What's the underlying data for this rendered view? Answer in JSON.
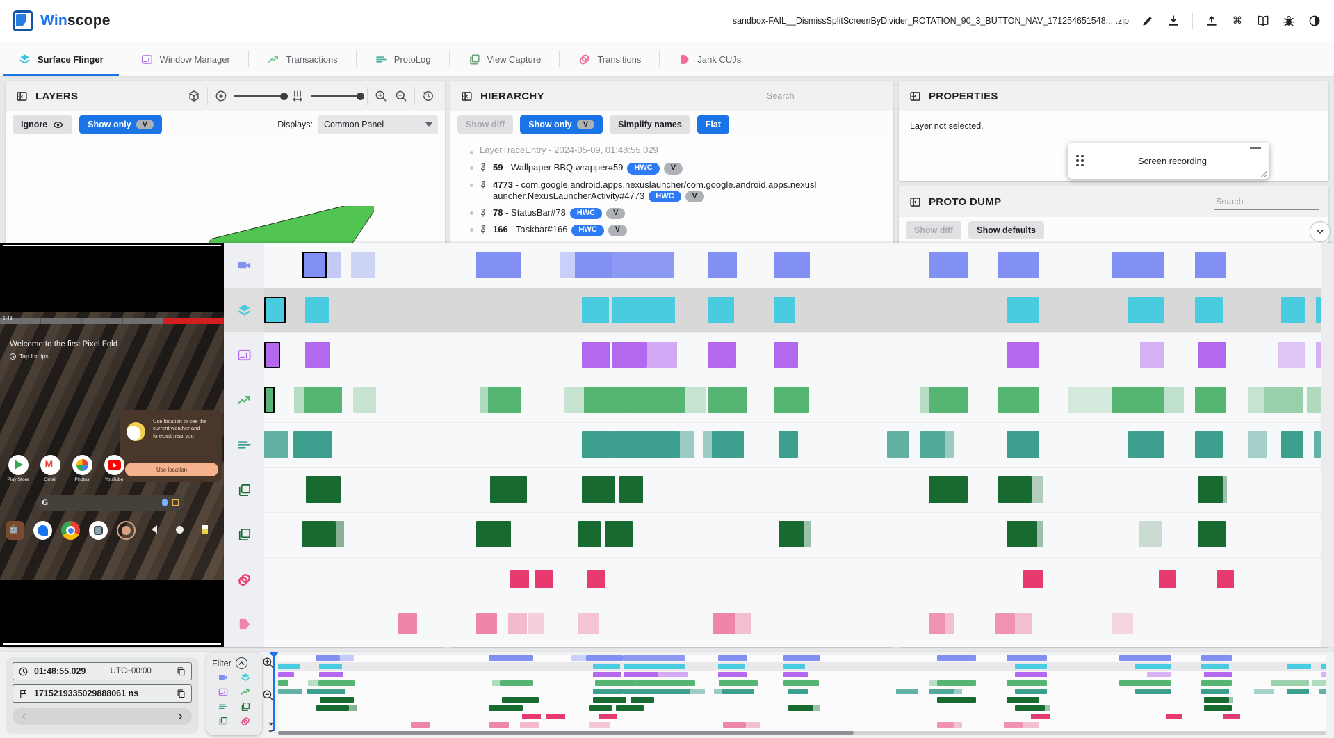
{
  "colors": {
    "accent": "#1b73e8",
    "chip_hwc": "#2f7bf6",
    "chip_v": "#aeb1b6",
    "selected_row_bg": "#d8d8d8"
  },
  "topbar": {
    "brand_bold": "Win",
    "brand_rest": "scope",
    "filename": "sandbox-FAIL__DismissSplitScreenByDivider_ROTATION_90_3_BUTTON_NAV_171254651548... .zip",
    "icons": [
      "edit-icon",
      "download-icon",
      "divider",
      "upload-icon",
      "shortcuts-icon",
      "docs-icon",
      "bug-icon",
      "theme-toggle-icon"
    ]
  },
  "tabs": [
    {
      "label": "Surface Flinger",
      "icon": "layers",
      "color": "#35c4dd",
      "active": true
    },
    {
      "label": "Window Manager",
      "icon": "window",
      "color": "#b06ae8",
      "active": false
    },
    {
      "label": "Transactions",
      "icon": "trending",
      "color": "#7cc795",
      "active": false
    },
    {
      "label": "ProtoLog",
      "icon": "lines",
      "color": "#56b3a2",
      "active": false
    },
    {
      "label": "View Capture",
      "icon": "squares",
      "color": "#5d9e6e",
      "active": false
    },
    {
      "label": "Transitions",
      "icon": "rings",
      "color": "#ef6e99",
      "active": false
    },
    {
      "label": "Jank CUJs",
      "icon": "pentagon",
      "color": "#ef6e99",
      "active": false
    }
  ],
  "layers": {
    "title": "LAYERS",
    "ignore_label": "Ignore",
    "show_only_label": "Show only",
    "chip": "V",
    "displays_label": "Displays:",
    "displays_value": "Common Panel",
    "stack_colors": [
      "#c9e5c9",
      "#9a55d6",
      "#cfe0cf",
      "#a05fd8",
      "#8fd48f",
      "#b7e2b7",
      "#52c452"
    ]
  },
  "hierarchy": {
    "title": "HIERARCHY",
    "search_placeholder": "Search",
    "buttons": [
      {
        "label": "Show diff",
        "style": "disabled"
      },
      {
        "label": "Show only",
        "chip": "V",
        "style": "primary"
      },
      {
        "label": "Simplify names",
        "style": "normal"
      },
      {
        "label": "Flat",
        "style": "primary"
      }
    ],
    "root": "LayerTraceEntry - 2024-05-09, 01:48:55.029",
    "items": [
      {
        "id": "59",
        "name": " - Wallpaper BBQ wrapper#59",
        "chips": [
          "HWC",
          "V"
        ]
      },
      {
        "id": "4773",
        "name": " - com.google.android.apps.nexuslauncher/com.google.android.apps.nexuslauncher.NexusLauncherActivity#4773",
        "chips": [
          "HWC",
          "V"
        ]
      },
      {
        "id": "78",
        "name": " - StatusBar#78",
        "chips": [
          "HWC",
          "V"
        ]
      },
      {
        "id": "166",
        "name": " - Taskbar#166",
        "chips": [
          "HWC",
          "V"
        ]
      }
    ]
  },
  "properties": {
    "title": "PROPERTIES",
    "empty": "Layer not selected.",
    "floating_title": "Screen recording"
  },
  "proto_dump": {
    "title": "PROTO DUMP",
    "search_placeholder": "Search",
    "buttons": [
      {
        "label": "Show diff",
        "style": "disabled"
      },
      {
        "label": "Show defaults",
        "style": "normal"
      }
    ]
  },
  "video": {
    "status_time": "1:48",
    "welcome": "Welcome to the first Pixel Fold",
    "tips": "Tap for tips",
    "weather_text": "Use location to see the current weather and forecast near you",
    "weather_button": "Use location",
    "apps": [
      "Play Store",
      "Gmail",
      "Photos",
      "YouTube"
    ]
  },
  "timeline": {
    "track_len": 1520,
    "rows": [
      {
        "name": "screen-recording",
        "icon": "videocam",
        "color": "#8290f4",
        "selected": false,
        "block_h": 38,
        "blocks": [
          [
            55,
            35,
            1,
            1
          ],
          [
            90,
            20,
            0.45
          ],
          [
            125,
            35,
            0.35
          ],
          [
            305,
            65,
            1
          ],
          [
            425,
            22,
            0.4
          ],
          [
            447,
            53,
            1
          ],
          [
            500,
            90,
            0.92
          ],
          [
            638,
            42,
            1
          ],
          [
            733,
            52,
            1
          ],
          [
            956,
            56,
            1
          ],
          [
            1056,
            59,
            1
          ],
          [
            1220,
            75,
            1
          ],
          [
            1339,
            44,
            1
          ]
        ]
      },
      {
        "name": "surface-flinger",
        "icon": "layers",
        "color": "#49ccdf",
        "selected": true,
        "block_h": 38,
        "blocks": [
          [
            0,
            31,
            1,
            1
          ],
          [
            59,
            34,
            1
          ],
          [
            457,
            39,
            1
          ],
          [
            501,
            90,
            1
          ],
          [
            638,
            38,
            1
          ],
          [
            733,
            31,
            1
          ],
          [
            1068,
            47,
            1
          ],
          [
            1243,
            52,
            1
          ],
          [
            1339,
            40,
            1
          ],
          [
            1463,
            35,
            1
          ],
          [
            1513,
            7,
            1
          ]
        ]
      },
      {
        "name": "window-manager",
        "icon": "window",
        "color": "#b468f0",
        "selected": false,
        "block_h": 38,
        "blocks": [
          [
            0,
            23,
            1,
            1
          ],
          [
            59,
            36,
            1
          ],
          [
            457,
            41,
            1
          ],
          [
            501,
            50,
            1
          ],
          [
            551,
            43,
            0.55
          ],
          [
            638,
            41,
            1
          ],
          [
            733,
            35,
            1
          ],
          [
            1068,
            47,
            1
          ],
          [
            1260,
            35,
            0.5
          ],
          [
            1343,
            40,
            1
          ],
          [
            1458,
            40,
            0.35
          ],
          [
            1513,
            7,
            0.5
          ]
        ]
      },
      {
        "name": "transactions",
        "icon": "trending",
        "color": "#57b574",
        "selected": false,
        "block_h": 38,
        "blocks": [
          [
            0,
            15,
            1,
            1
          ],
          [
            43,
            15,
            0.4
          ],
          [
            58,
            54,
            1
          ],
          [
            128,
            33,
            0.3
          ],
          [
            310,
            12,
            0.45
          ],
          [
            322,
            48,
            1
          ],
          [
            432,
            28,
            0.3
          ],
          [
            460,
            60,
            1
          ],
          [
            520,
            85,
            1
          ],
          [
            605,
            30,
            0.3
          ],
          [
            639,
            56,
            1
          ],
          [
            733,
            51,
            1
          ],
          [
            944,
            12,
            0.4
          ],
          [
            956,
            56,
            1
          ],
          [
            1056,
            59,
            1
          ],
          [
            1156,
            64,
            0.22
          ],
          [
            1220,
            75,
            1
          ],
          [
            1295,
            28,
            0.35
          ],
          [
            1339,
            44,
            1
          ],
          [
            1415,
            24,
            0.3
          ],
          [
            1439,
            56,
            0.6
          ],
          [
            1500,
            20,
            0.45
          ]
        ]
      },
      {
        "name": "protolog",
        "icon": "lines",
        "color": "#3d9f8d",
        "selected": false,
        "block_h": 38,
        "blocks": [
          [
            0,
            35,
            0.8
          ],
          [
            42,
            56,
            1
          ],
          [
            457,
            43,
            1
          ],
          [
            500,
            98,
            1
          ],
          [
            598,
            21,
            0.5
          ],
          [
            632,
            12,
            0.5
          ],
          [
            644,
            46,
            1
          ],
          [
            740,
            28,
            1
          ],
          [
            896,
            32,
            0.8
          ],
          [
            944,
            36,
            0.9
          ],
          [
            980,
            12,
            0.5
          ],
          [
            1068,
            47,
            1
          ],
          [
            1243,
            52,
            1
          ],
          [
            1339,
            40,
            1
          ],
          [
            1415,
            28,
            0.45
          ],
          [
            1463,
            32,
            1
          ],
          [
            1510,
            10,
            0.8
          ]
        ]
      },
      {
        "name": "view-capture-1",
        "icon": "squares",
        "color": "#176b31",
        "selected": false,
        "block_h": 38,
        "blocks": [
          [
            60,
            50,
            1
          ],
          [
            325,
            53,
            1
          ],
          [
            457,
            48,
            1
          ],
          [
            511,
            34,
            1
          ],
          [
            956,
            56,
            1
          ],
          [
            1056,
            48,
            1
          ],
          [
            1104,
            16,
            0.3
          ],
          [
            1343,
            36,
            1
          ],
          [
            1379,
            6,
            0.4
          ]
        ]
      },
      {
        "name": "view-capture-2",
        "icon": "squares",
        "color": "#176b31",
        "selected": false,
        "block_h": 38,
        "blocks": [
          [
            55,
            48,
            1
          ],
          [
            103,
            12,
            0.5
          ],
          [
            305,
            50,
            1
          ],
          [
            452,
            32,
            1
          ],
          [
            490,
            40,
            1
          ],
          [
            740,
            36,
            1
          ],
          [
            776,
            10,
            0.4
          ],
          [
            1068,
            44,
            1
          ],
          [
            1112,
            8,
            0.4
          ],
          [
            1259,
            32,
            0.2
          ],
          [
            1343,
            40,
            1
          ]
        ]
      },
      {
        "name": "transitions",
        "icon": "rings",
        "color": "#e73a6e",
        "selected": false,
        "block_h": 26,
        "blocks": [
          [
            354,
            27,
            1
          ],
          [
            389,
            27,
            1
          ],
          [
            465,
            26,
            1
          ],
          [
            1092,
            28,
            1
          ],
          [
            1287,
            24,
            1
          ],
          [
            1371,
            24,
            1
          ]
        ]
      },
      {
        "name": "jank-cujs",
        "icon": "pentagon",
        "color": "#ee86aa",
        "selected": false,
        "block_h": 30,
        "blocks": [
          [
            193,
            27,
            1
          ],
          [
            305,
            30,
            1
          ],
          [
            351,
            27,
            0.55
          ],
          [
            379,
            24,
            0.35
          ],
          [
            452,
            30,
            0.45
          ],
          [
            645,
            33,
            1
          ],
          [
            678,
            22,
            0.5
          ],
          [
            956,
            24,
            0.9
          ],
          [
            980,
            12,
            0.5
          ],
          [
            1052,
            28,
            0.9
          ],
          [
            1080,
            24,
            0.5
          ],
          [
            1220,
            30,
            0.3
          ]
        ]
      }
    ]
  },
  "bottom": {
    "time": "01:48:55.029",
    "tz": "UTC+00:00",
    "ns": "1715219335029888061 ns",
    "filter_label": "Filter",
    "filter_icons": [
      "videocam",
      "layers",
      "window",
      "trending",
      "lines",
      "squares",
      "squares",
      "rings"
    ],
    "filter_colors": [
      "#8290f4",
      "#49ccdf",
      "#b468f0",
      "#57b574",
      "#3d9f8d",
      "#176b31",
      "#176b31",
      "#e8558a"
    ]
  }
}
